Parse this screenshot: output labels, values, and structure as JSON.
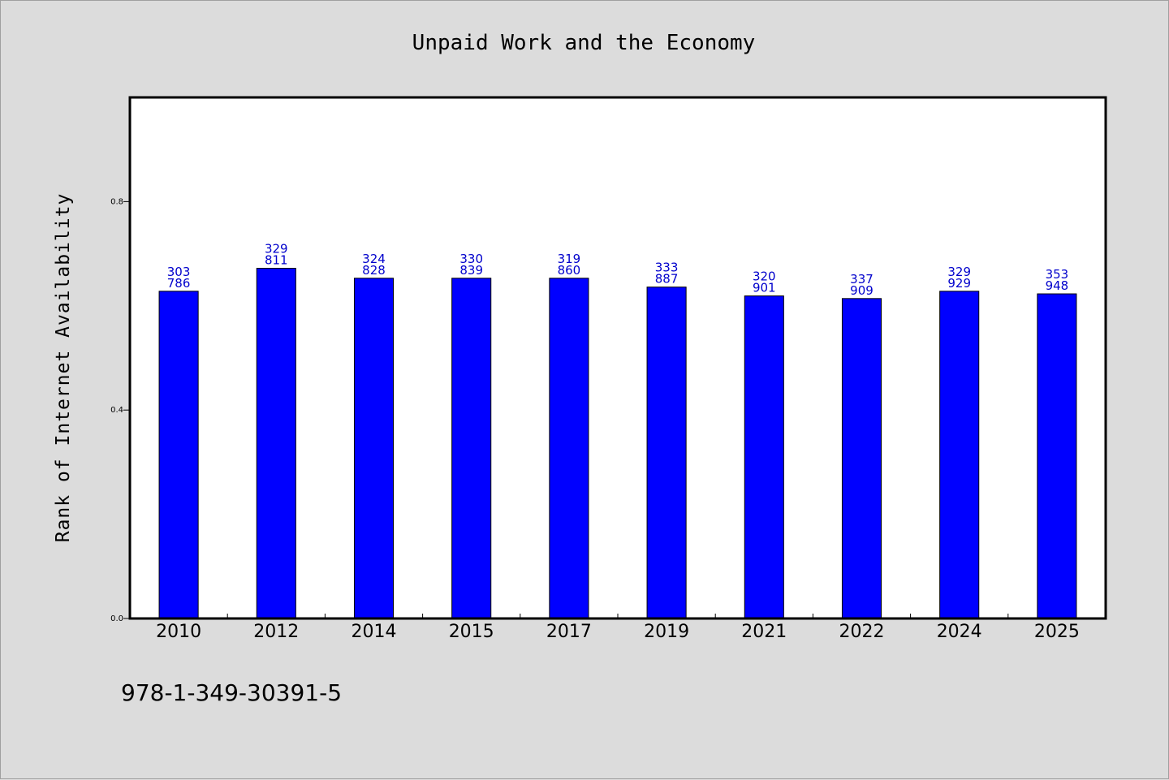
{
  "colors": {
    "background": "#dcdcdc",
    "plot_background": "#ffffff",
    "bar_fill": "#0000ff",
    "bar_stroke": "#000000",
    "data_label": "#0000cc"
  },
  "footnote": "978-1-349-30391-5",
  "chart_data": {
    "type": "bar",
    "title": "Unpaid Work and the Economy",
    "xlabel": "",
    "ylabel": "Rank of Internet Availability",
    "ylim": [
      0,
      1.0
    ],
    "yticks": [
      0.0,
      0.4,
      0.8
    ],
    "ytick_labels": [
      "0.0",
      "0.4",
      "0.8"
    ],
    "grid": false,
    "categories": [
      "2010",
      "2012",
      "2014",
      "2015",
      "2017",
      "2019",
      "2021",
      "2022",
      "2024",
      "2025"
    ],
    "values": [
      0.628,
      0.672,
      0.653,
      0.653,
      0.653,
      0.636,
      0.619,
      0.614,
      0.628,
      0.623
    ],
    "data_labels": [
      [
        "303",
        "786"
      ],
      [
        "329",
        "811"
      ],
      [
        "324",
        "828"
      ],
      [
        "330",
        "839"
      ],
      [
        "319",
        "860"
      ],
      [
        "333",
        "887"
      ],
      [
        "320",
        "901"
      ],
      [
        "337",
        "909"
      ],
      [
        "329",
        "929"
      ],
      [
        "353",
        "948"
      ]
    ]
  }
}
